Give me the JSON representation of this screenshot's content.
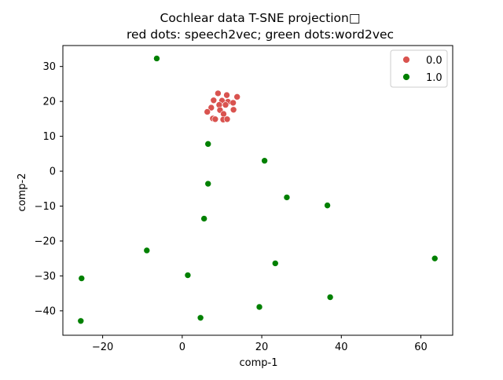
{
  "chart_data": {
    "type": "scatter",
    "title_lines": [
      "Cochlear data T-SNE projection□",
      "red dots: speech2vec; green dots:word2vec"
    ],
    "xlabel": "comp-1",
    "ylabel": "comp-2",
    "xlim": [
      -30,
      68
    ],
    "ylim": [
      -47,
      36
    ],
    "xticks": [
      -20,
      0,
      20,
      40,
      60
    ],
    "yticks": [
      -40,
      -30,
      -20,
      -10,
      0,
      10,
      20,
      30
    ],
    "xtick_labels": [
      "−20",
      "0",
      "20",
      "40",
      "60"
    ],
    "ytick_labels": [
      "−40",
      "−30",
      "−20",
      "−10",
      "0",
      "10",
      "20",
      "30"
    ],
    "grid": false,
    "legend_position": "top-right",
    "series": [
      {
        "name": "0.0",
        "color": "#d9534f",
        "points": [
          [
            9.0,
            22.3
          ],
          [
            11.2,
            21.8
          ],
          [
            13.8,
            21.3
          ],
          [
            7.9,
            20.3
          ],
          [
            10.0,
            20.2
          ],
          [
            11.5,
            19.9
          ],
          [
            12.8,
            19.6
          ],
          [
            9.3,
            19.0
          ],
          [
            10.9,
            19.0
          ],
          [
            7.3,
            18.2
          ],
          [
            9.5,
            17.5
          ],
          [
            12.9,
            17.6
          ],
          [
            6.3,
            17.0
          ],
          [
            10.4,
            16.4
          ],
          [
            7.7,
            15.1
          ],
          [
            8.3,
            14.9
          ],
          [
            10.3,
            14.8
          ],
          [
            11.3,
            14.9
          ]
        ]
      },
      {
        "name": "1.0",
        "color": "#008000",
        "points": [
          [
            -6.4,
            32.3
          ],
          [
            6.5,
            7.8
          ],
          [
            20.7,
            3.0
          ],
          [
            6.5,
            -3.6
          ],
          [
            26.3,
            -7.5
          ],
          [
            36.5,
            -9.8
          ],
          [
            5.5,
            -13.6
          ],
          [
            -8.9,
            -22.7
          ],
          [
            63.5,
            -25.0
          ],
          [
            23.4,
            -26.4
          ],
          [
            1.4,
            -29.8
          ],
          [
            -25.3,
            -30.7
          ],
          [
            37.2,
            -36.1
          ],
          [
            19.4,
            -38.9
          ],
          [
            4.6,
            -42.0
          ],
          [
            -25.5,
            -42.9
          ]
        ]
      }
    ]
  }
}
